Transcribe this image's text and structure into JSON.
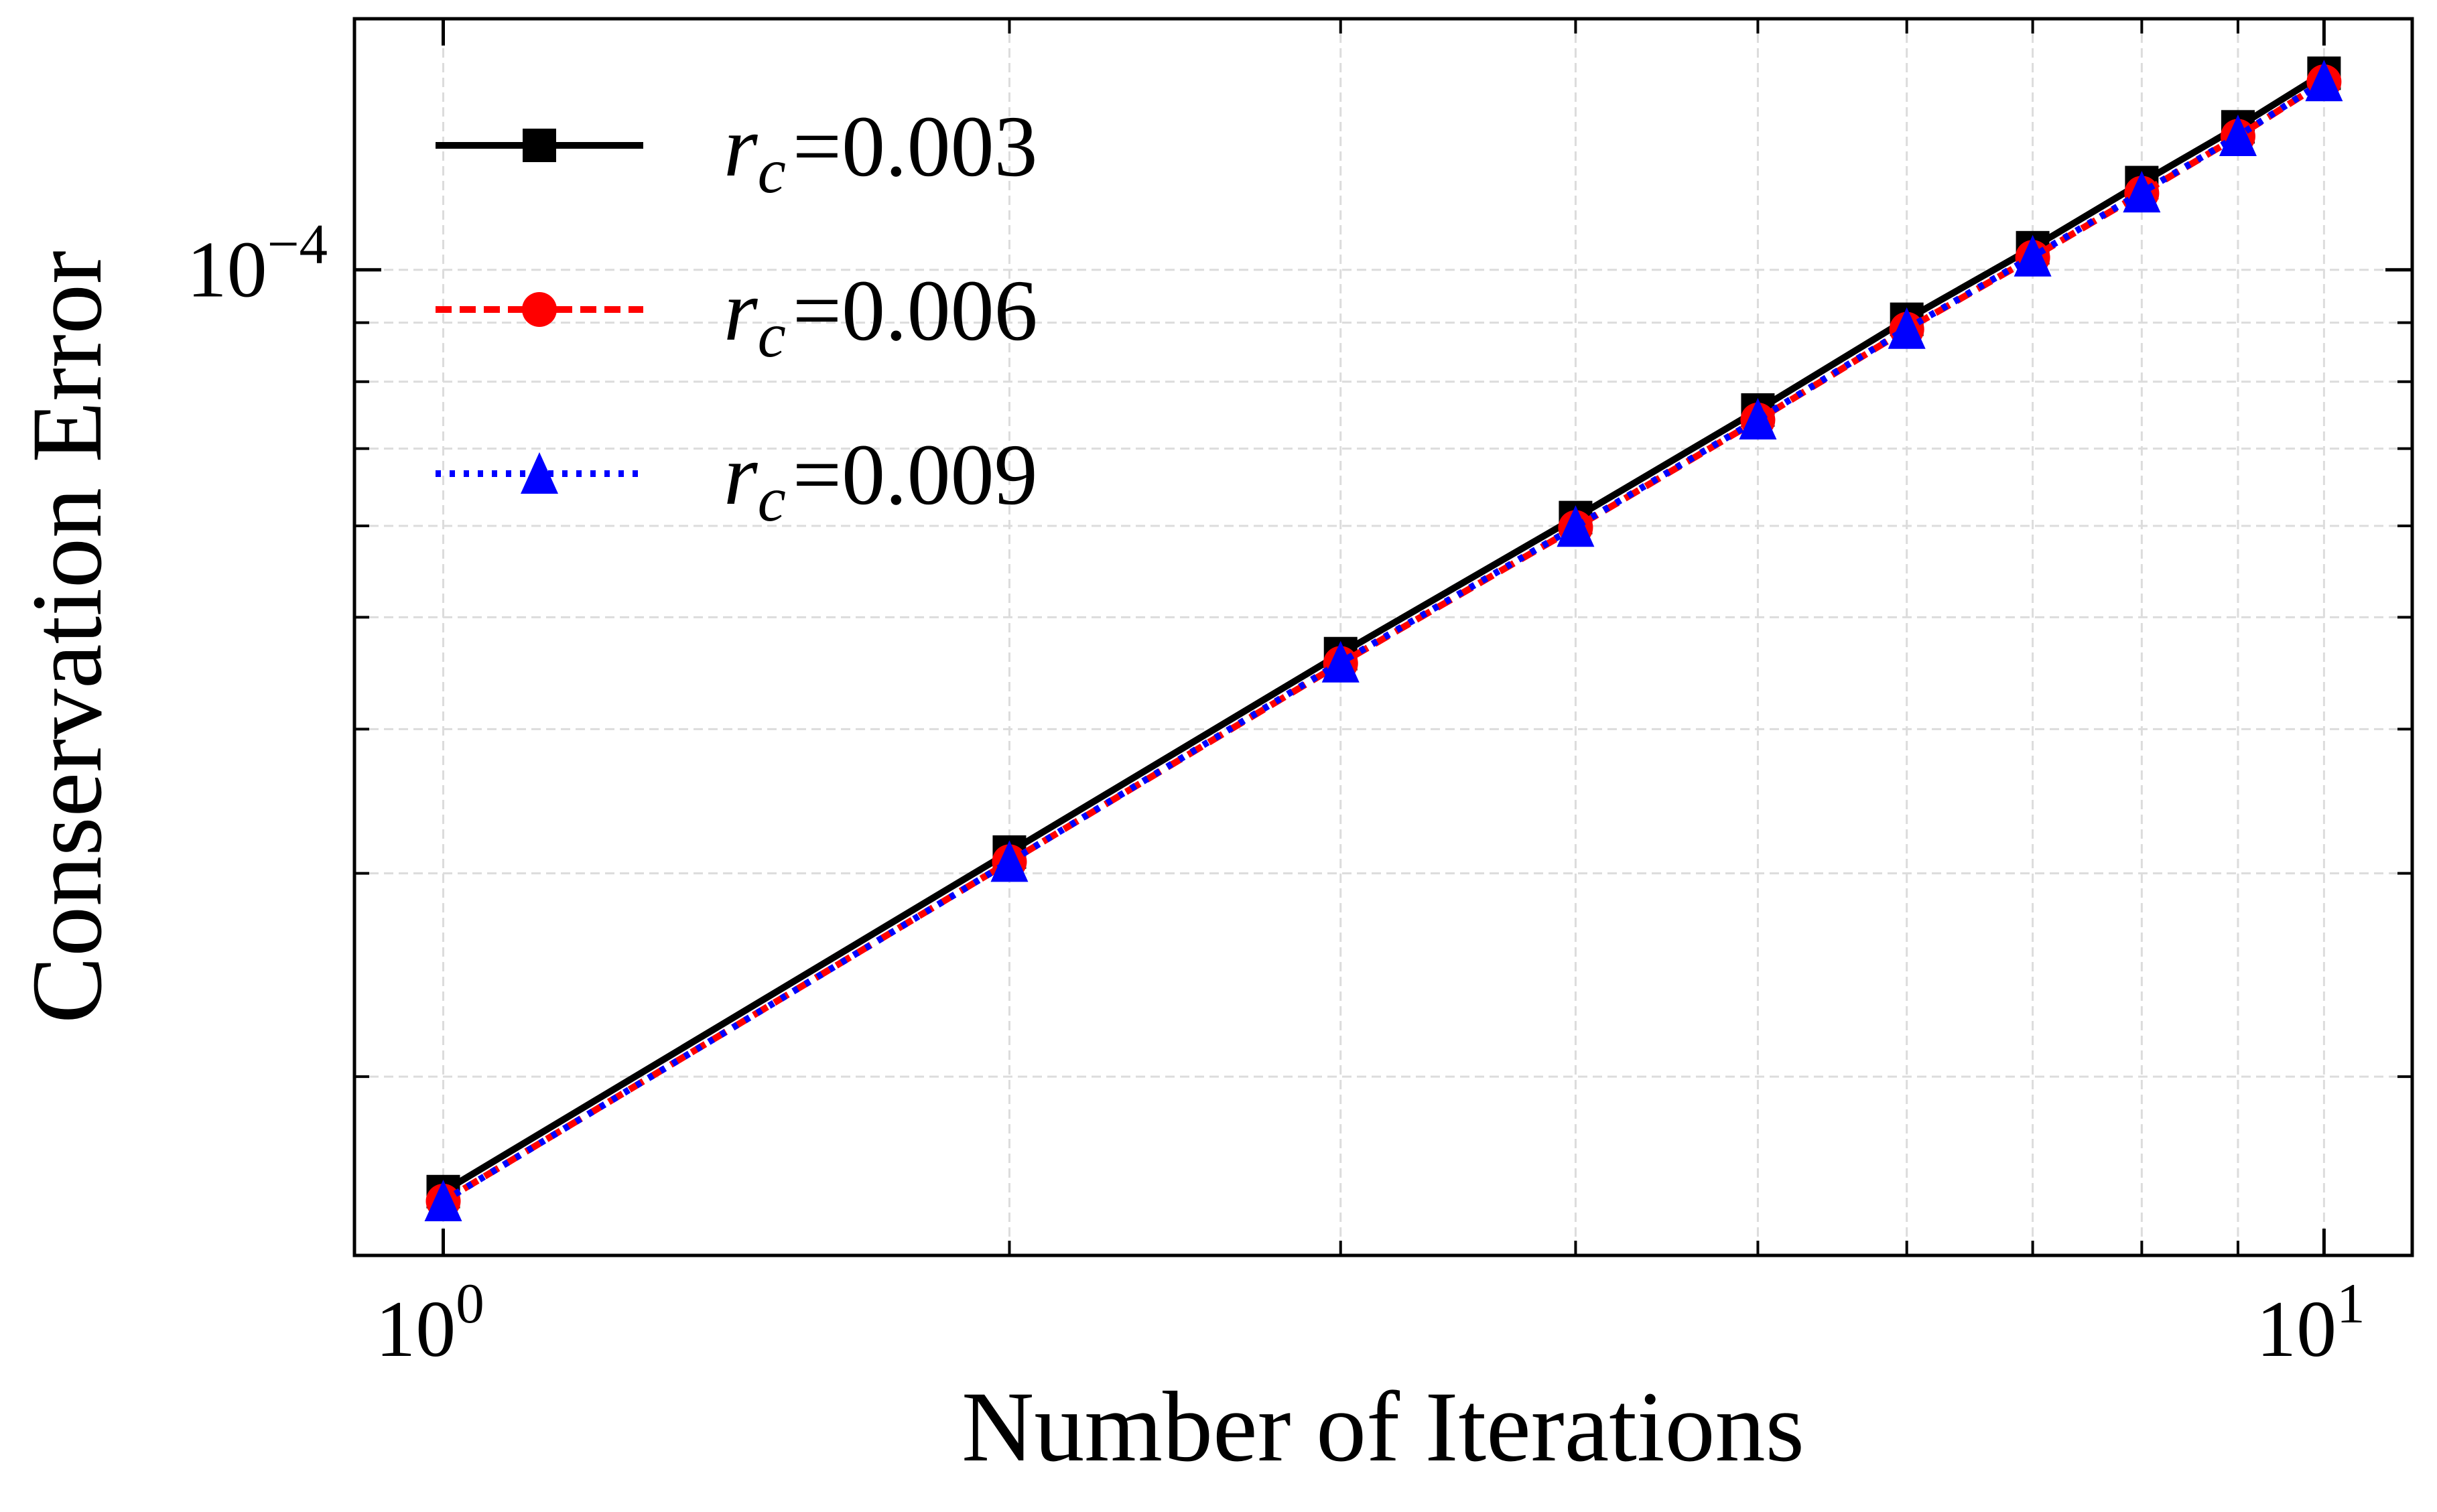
{
  "chart_data": {
    "type": "line",
    "xscale": "log",
    "yscale": "log",
    "xlabel": "Number of Iterations",
    "ylabel": "Conservation Error",
    "xlim": [
      0.897,
      11.14
    ],
    "ylim": [
      1.4e-05,
      0.000165
    ],
    "x_major_ticks": [
      {
        "value": 1,
        "base": "10",
        "exp": "0"
      },
      {
        "value": 10,
        "base": "10",
        "exp": "1"
      }
    ],
    "y_major_ticks": [
      {
        "value": 0.0001,
        "base": "10",
        "exp": "−4"
      }
    ],
    "x_minor_ticks": [
      2,
      3,
      4,
      5,
      6,
      7,
      8,
      9
    ],
    "y_minor_ticks": [
      2e-05,
      3e-05,
      4e-05,
      5e-05,
      6e-05,
      7e-05,
      8e-05,
      9e-05
    ],
    "grid": true,
    "legend_position": "top-left",
    "x": [
      1,
      2,
      3,
      4,
      5,
      6,
      7,
      8,
      9,
      10
    ],
    "series": [
      {
        "name": "r_c = 0.003",
        "label_sym": "r",
        "label_sub": "c",
        "label_val": "=0.003",
        "color": "#000000",
        "linestyle": "solid",
        "marker": "square",
        "values": [
          1.59e-05,
          3.13e-05,
          4.65e-05,
          6.1e-05,
          7.56e-05,
          9.06e-05,
          0.0001045,
          0.000119,
          0.000133,
          0.000148
        ]
      },
      {
        "name": "r_c = 0.006",
        "label_sym": "r",
        "label_sub": "c",
        "label_val": "=0.006",
        "color": "#ff0000",
        "linestyle": "dashed",
        "marker": "circle",
        "values": [
          1.56e-05,
          3.07e-05,
          4.56e-05,
          5.98e-05,
          7.41e-05,
          8.88e-05,
          0.0001025,
          0.0001165,
          0.0001305,
          0.0001455
        ]
      },
      {
        "name": "r_c = 0.009",
        "label_sym": "r",
        "label_sub": "c",
        "label_val": "=0.009",
        "color": "#0000ff",
        "linestyle": "dotted",
        "marker": "triangle",
        "values": [
          1.56e-05,
          3.07e-05,
          4.57e-05,
          5.99e-05,
          7.42e-05,
          8.89e-05,
          0.0001027,
          0.0001167,
          0.0001306,
          0.0001457
        ]
      }
    ]
  }
}
